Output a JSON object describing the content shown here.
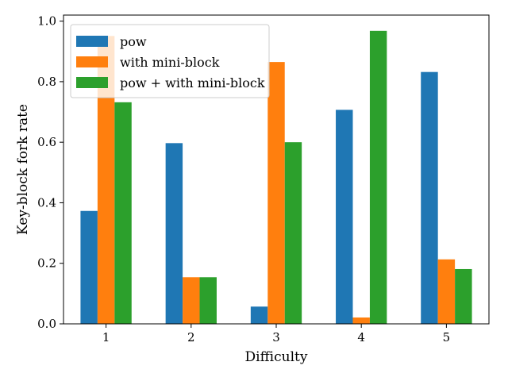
{
  "chart_data": {
    "type": "bar",
    "categories": [
      "1",
      "2",
      "3",
      "4",
      "5"
    ],
    "series": [
      {
        "name": "pow",
        "color": "#1f77b4",
        "values": [
          0.373,
          0.597,
          0.057,
          0.707,
          0.832
        ]
      },
      {
        "name": "with mini-block",
        "color": "#ff7f0e",
        "values": [
          0.951,
          0.154,
          0.865,
          0.021,
          0.213
        ]
      },
      {
        "name": "pow + with mini-block",
        "color": "#2ca02c",
        "values": [
          0.732,
          0.154,
          0.6,
          0.968,
          0.181
        ]
      }
    ],
    "xlabel": "Difficulty",
    "ylabel": "Key-block fork rate",
    "ylim": [
      0,
      1.02
    ],
    "yticks": [
      "0.0",
      "0.2",
      "0.4",
      "0.6",
      "0.8",
      "1.0"
    ],
    "legend": "top-left",
    "grid": false
  }
}
